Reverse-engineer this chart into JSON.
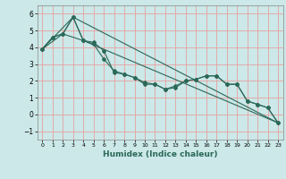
{
  "xlabel": "Humidex (Indice chaleur)",
  "background_color": "#cce8e8",
  "grid_color": "#e8a0a0",
  "line_color": "#2a6858",
  "xlim": [
    -0.5,
    23.5
  ],
  "ylim": [
    -1.5,
    6.5
  ],
  "yticks": [
    -1,
    0,
    1,
    2,
    3,
    4,
    5,
    6
  ],
  "xticks": [
    0,
    1,
    2,
    3,
    4,
    5,
    6,
    7,
    8,
    9,
    10,
    11,
    12,
    13,
    14,
    15,
    16,
    17,
    18,
    19,
    20,
    21,
    22,
    23
  ],
  "line1_x": [
    0,
    1,
    2,
    3,
    4,
    5,
    6,
    7,
    8,
    9,
    10,
    11,
    12,
    13,
    14,
    15,
    16,
    17,
    18,
    19,
    20,
    21,
    22,
    23
  ],
  "line1_y": [
    3.9,
    4.6,
    4.8,
    5.8,
    4.4,
    4.3,
    3.8,
    2.5,
    2.4,
    2.2,
    1.9,
    1.8,
    1.5,
    1.7,
    2.0,
    2.1,
    2.3,
    2.3,
    1.8,
    1.8,
    0.8,
    0.6,
    0.4,
    -0.5
  ],
  "line2_x": [
    0,
    1,
    2,
    3,
    4,
    5,
    6,
    7,
    8,
    9,
    10,
    11,
    12,
    13,
    14,
    15,
    16,
    17,
    18,
    19,
    20,
    21,
    22,
    23
  ],
  "line2_y": [
    3.9,
    4.6,
    4.8,
    5.8,
    4.4,
    4.2,
    3.3,
    2.6,
    2.4,
    2.2,
    1.8,
    1.8,
    1.5,
    1.6,
    2.0,
    2.1,
    2.3,
    2.3,
    1.8,
    1.8,
    0.8,
    0.6,
    0.4,
    -0.5
  ],
  "line3_x": [
    0,
    3,
    23
  ],
  "line3_y": [
    3.9,
    5.8,
    -0.5
  ],
  "line4_x": [
    0,
    2,
    4,
    23
  ],
  "line4_y": [
    3.9,
    4.8,
    4.4,
    -0.5
  ]
}
